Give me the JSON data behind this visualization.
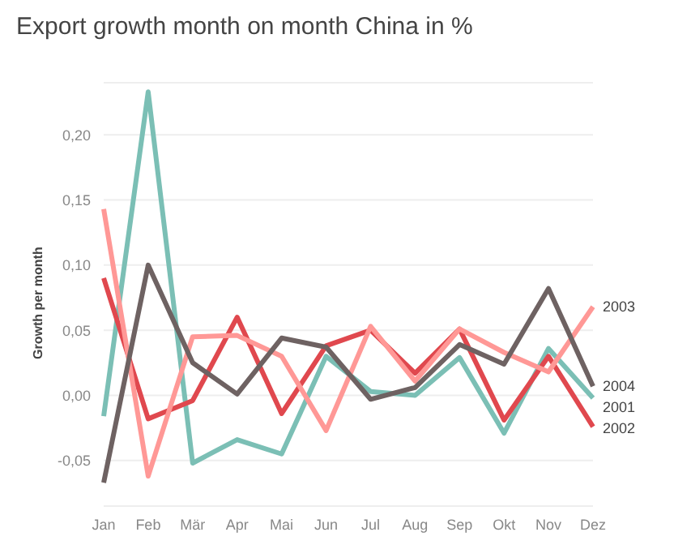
{
  "chart_data": {
    "type": "line",
    "title": "Export growth month on month China in %",
    "ylabel": "Growth per month",
    "categories": [
      "Jan",
      "Feb",
      "Mär",
      "Apr",
      "Mai",
      "Jun",
      "Jul",
      "Aug",
      "Sep",
      "Okt",
      "Nov",
      "Dez"
    ],
    "series": [
      {
        "name": "2001",
        "color": "#7bbfb5",
        "values": [
          -0.016,
          0.233,
          -0.052,
          -0.034,
          -0.045,
          0.03,
          0.003,
          0.0,
          0.029,
          -0.029,
          0.036,
          -0.002
        ]
      },
      {
        "name": "2002",
        "color": "#e0484e",
        "values": [
          0.09,
          -0.018,
          -0.004,
          0.06,
          -0.014,
          0.038,
          0.05,
          0.017,
          0.051,
          -0.019,
          0.03,
          -0.024
        ]
      },
      {
        "name": "2003",
        "color": "#ff9896",
        "values": [
          0.143,
          -0.062,
          0.045,
          0.046,
          0.03,
          -0.027,
          0.053,
          0.011,
          0.051,
          0.033,
          0.018,
          0.068
        ]
      },
      {
        "name": "2004",
        "color": "#6e6262",
        "values": [
          -0.067,
          0.1,
          0.025,
          0.001,
          0.044,
          0.037,
          -0.003,
          0.006,
          0.039,
          0.024,
          0.082,
          0.007
        ]
      }
    ],
    "ylim": [
      -0.085,
      0.24
    ],
    "yticks": [
      {
        "value": -0.05,
        "label": "-0,05"
      },
      {
        "value": 0,
        "label": "0,00"
      },
      {
        "value": 0.05,
        "label": "0,05"
      },
      {
        "value": 0.1,
        "label": "0,10"
      },
      {
        "value": 0.15,
        "label": "0,15"
      },
      {
        "value": 0.2,
        "label": "0,20"
      }
    ],
    "grid": "y",
    "marker": "none",
    "line_style": "solid",
    "legend": false
  }
}
